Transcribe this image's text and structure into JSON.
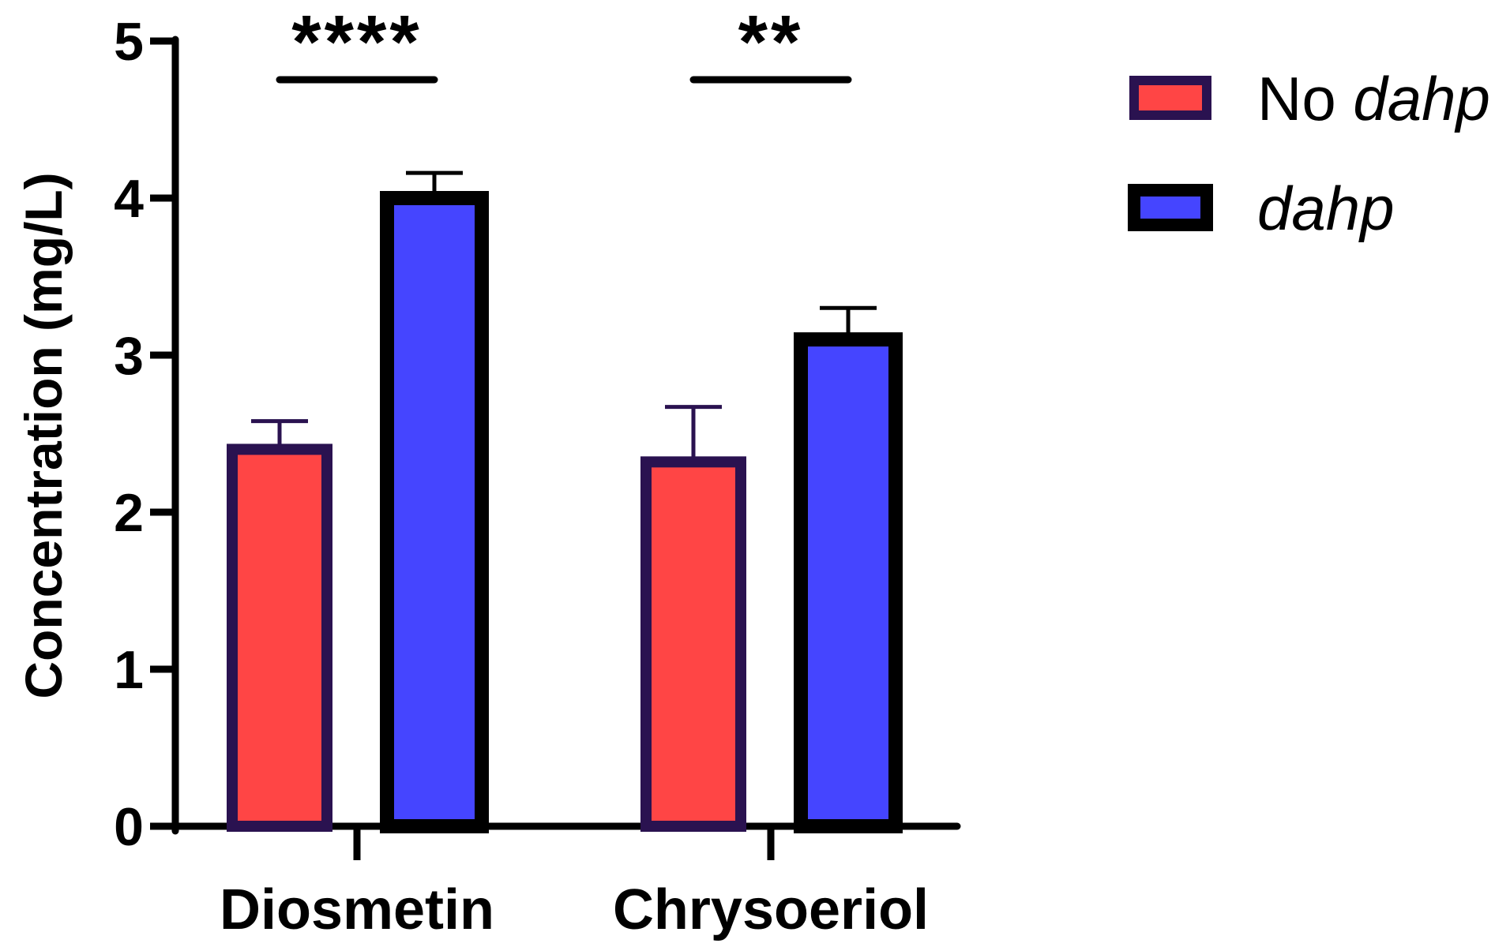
{
  "chart_data": {
    "type": "bar",
    "title": "",
    "xlabel": "",
    "ylabel": "Concentration (mg/L)",
    "ylim": [
      0,
      5
    ],
    "yticks": [
      0,
      1,
      2,
      3,
      4,
      5
    ],
    "categories": [
      "Diosmetin",
      "Chrysoeriol"
    ],
    "series": [
      {
        "name": "No dahp",
        "legend_prefix": "No ",
        "legend_italic": "dahp",
        "fill": "#FF4545",
        "stroke": "#2A1250",
        "values": [
          2.4,
          2.32
        ],
        "errors": [
          0.18,
          0.35
        ]
      },
      {
        "name": "dahp",
        "legend_prefix": "",
        "legend_italic": "dahp",
        "fill": "#4545FF",
        "stroke": "#000000",
        "values": [
          4.0,
          3.1
        ],
        "errors": [
          0.16,
          0.2
        ]
      }
    ],
    "significance": [
      {
        "category": "Diosmetin",
        "label": "****"
      },
      {
        "category": "Chrysoeriol",
        "label": "**"
      }
    ],
    "legend_position": "top-right",
    "grid": false
  }
}
